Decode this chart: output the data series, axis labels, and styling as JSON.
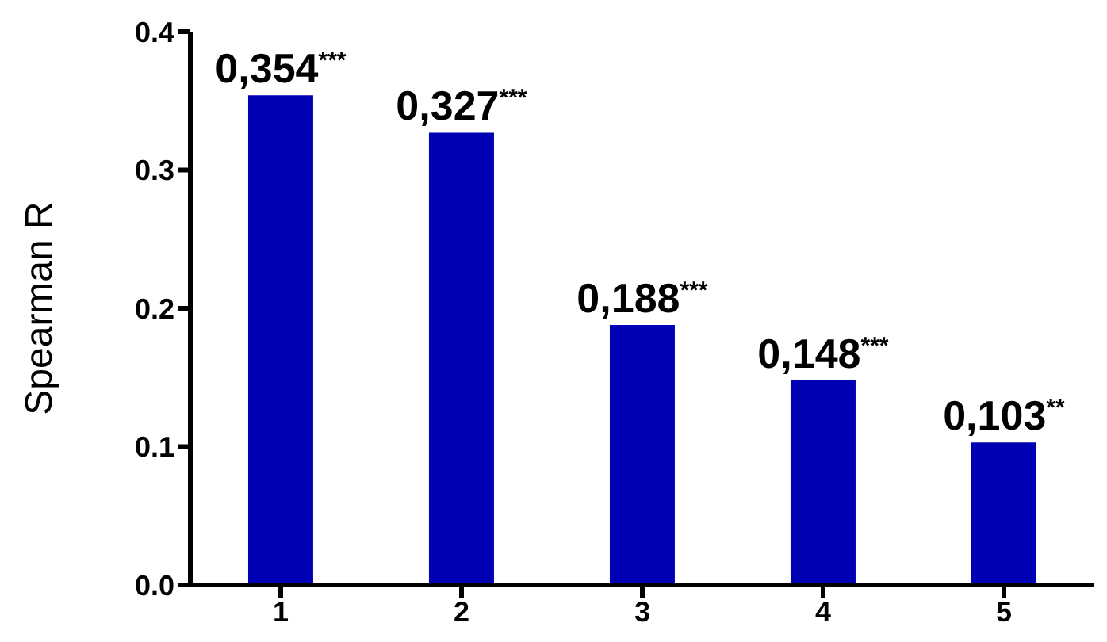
{
  "chart_data": {
    "type": "bar",
    "ylabel": "Spearman R",
    "categories": [
      "1",
      "2",
      "3",
      "4",
      "5"
    ],
    "values": [
      0.354,
      0.327,
      0.188,
      0.148,
      0.103
    ],
    "value_labels": [
      "0,354$^{***}$",
      "0,327$^{***}$",
      "0,188$^{***}$",
      "0,148$^{***}$",
      "0,103$^{**}$"
    ],
    "color": "#0000b4",
    "ylim": [
      0,
      0.4
    ],
    "yticks": [
      {
        "value": 0,
        "label": "0.0"
      },
      {
        "value": 0.1,
        "label": "0.1"
      },
      {
        "value": 0.2,
        "label": "0.2"
      },
      {
        "value": 0.3,
        "label": "0.3"
      },
      {
        "value": 0.4,
        "label": "0.4"
      }
    ],
    "grid": false
  }
}
